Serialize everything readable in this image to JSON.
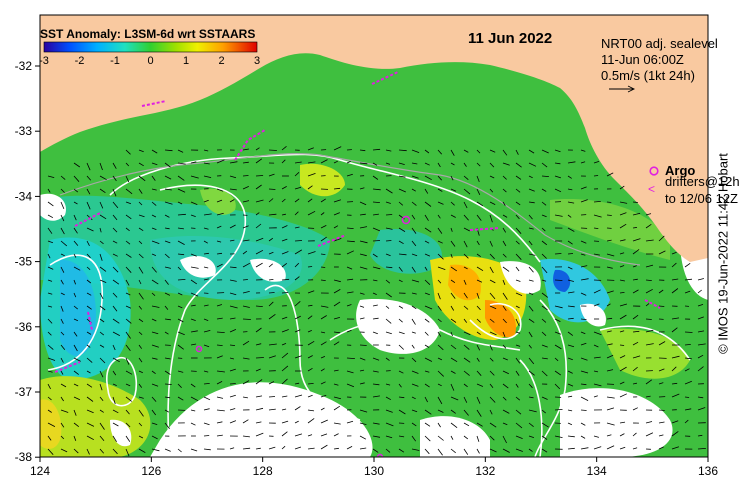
{
  "map": {
    "title": "SST Anomaly: L3SM-6d wrt SSTAARS",
    "date": "11 Jun 2022",
    "colorbar": {
      "ticks": [
        "-3",
        "-2",
        "-1",
        "0",
        "1",
        "2",
        "3"
      ],
      "min": -3,
      "max": 3
    },
    "current_legend": {
      "line1": "NRT00 adj. sealevel",
      "line2": "11-Jun 06:00Z",
      "line3": "0.5m/s (1kt 24h)"
    },
    "argo_legend": {
      "argo_label": "Argo",
      "drifters_line1": "drifters@12h",
      "drifters_line2": "to 12/06 12Z",
      "argo_color": "#e020e0"
    },
    "x_ticks": [
      "124",
      "126",
      "128",
      "130",
      "132",
      "134",
      "136"
    ],
    "y_ticks": [
      "-32",
      "-33",
      "-34",
      "-35",
      "-36",
      "-37",
      "-38"
    ],
    "credit": "© IMOS 19-Jun-2022 11:42 Hobart",
    "colors": {
      "land": "#f9c9a0",
      "ocean_base": "#3fbf3f",
      "contour": "#ffffff",
      "argo": "#e020e0"
    }
  }
}
